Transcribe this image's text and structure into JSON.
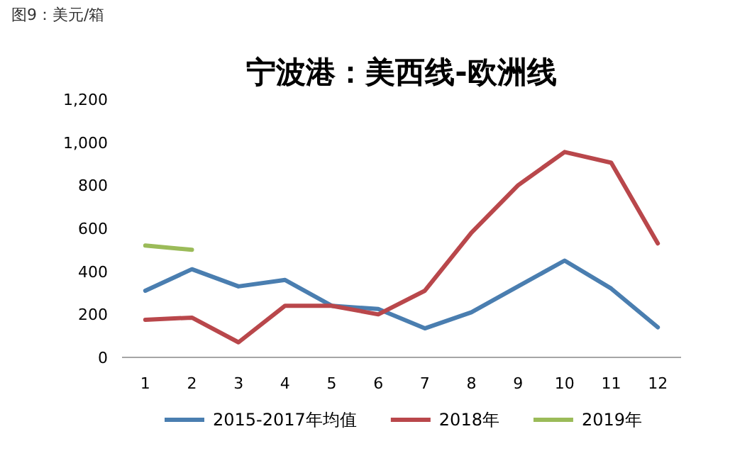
{
  "chart_data": {
    "type": "line",
    "title": "宁波港：美西线-欧洲线",
    "annotations": [
      "图9：美元/箱"
    ],
    "categories": [
      "1",
      "2",
      "3",
      "4",
      "5",
      "6",
      "7",
      "8",
      "9",
      "10",
      "11",
      "12"
    ],
    "ylim": [
      0,
      1200
    ],
    "yticks": [
      0,
      200,
      400,
      600,
      800,
      {
        "value": 1000,
        "label": "1,000"
      },
      {
        "value": 1200,
        "label": "1,200"
      }
    ],
    "grid": false,
    "legend": "bottom",
    "marker": "none",
    "line_style": "solid",
    "series": [
      {
        "name": "2015-2017年均值",
        "color": "#4a7eb0",
        "values": [
          310,
          410,
          330,
          360,
          240,
          225,
          135,
          210,
          330,
          450,
          320,
          140
        ]
      },
      {
        "name": "2018年",
        "color": "#b9474b",
        "values": [
          175,
          185,
          70,
          240,
          240,
          200,
          310,
          580,
          800,
          955,
          905,
          530
        ]
      },
      {
        "name": "2019年",
        "color": "#9bbb59",
        "values": [
          520,
          500,
          null,
          null,
          null,
          null,
          null,
          null,
          null,
          null,
          null,
          null
        ]
      }
    ]
  }
}
